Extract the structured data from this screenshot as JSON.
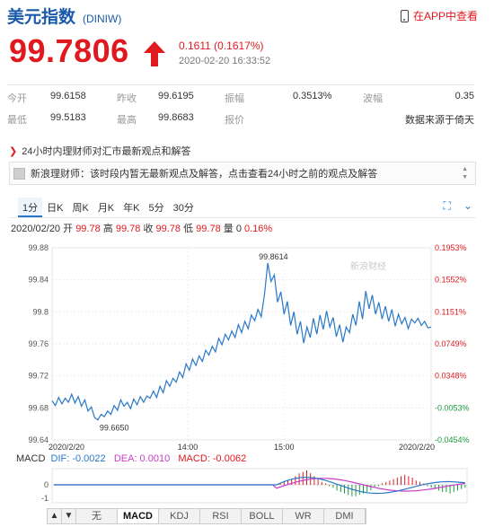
{
  "header": {
    "title": "美元指数",
    "code": "(DINIW)",
    "app_link": "在APP中查看"
  },
  "quote": {
    "price": "99.7806",
    "change": "0.1611 (0.1617%)",
    "timestamp": "2020-02-20 16:33:52",
    "trend": "up",
    "color_up": "#e0191e"
  },
  "stats": [
    {
      "label": "今开",
      "value": "99.6158"
    },
    {
      "label": "昨收",
      "value": "99.6195"
    },
    {
      "label": "振幅",
      "value": "0.3513%"
    },
    {
      "label": "波幅",
      "value": "0.35"
    },
    {
      "label": "最低",
      "value": "99.5183"
    },
    {
      "label": "最高",
      "value": "99.8683"
    },
    {
      "label": "报价",
      "value": "数据来源于倚天"
    }
  ],
  "advisor": {
    "heading": "24小时内理财师对汇市最新观点和解答",
    "message": "新浪理财师：该时段内暂无最新观点及解答，点击查看24小时之前的观点及解答"
  },
  "chart_tabs": [
    "1分",
    "日K",
    "周K",
    "月K",
    "年K",
    "5分",
    "30分"
  ],
  "active_tab": "1分",
  "tools": {
    "fullscreen_icon": "fullscreen-icon",
    "more_icon": "chevron-down-icon"
  },
  "ohlc": {
    "date": "2020/02/20",
    "open_label": "开",
    "open": "99.78",
    "high_label": "高",
    "high": "99.78",
    "close_label": "收",
    "close": "99.78",
    "low_label": "低",
    "low": "99.78",
    "volume_label": "量",
    "volume": "0",
    "pct": "0.16%"
  },
  "chart_data": {
    "type": "line",
    "watermark": "新浪财经",
    "y_ticks_left": [
      "99.88",
      "99.84",
      "99.8",
      "99.76",
      "99.72",
      "99.68",
      "99.64"
    ],
    "y_ticks_right": [
      "0.1953%",
      "0.1552%",
      "0.1151%",
      "0.0749%",
      "0.0348%",
      "-0.0053%",
      "-0.0454%"
    ],
    "x_ticks": [
      "2020/2/20",
      "14:00",
      "15:00",
      "2020/2/20"
    ],
    "ylim": [
      99.64,
      99.88
    ],
    "annotations": {
      "max": "99.8614",
      "min": "99.6650"
    },
    "series": [
      {
        "x": [
          0,
          4,
          8,
          12,
          16,
          20,
          24,
          28,
          32,
          36,
          40,
          44,
          48,
          52,
          56,
          60,
          64,
          68,
          72,
          76,
          80,
          84,
          88,
          92,
          96,
          100,
          104,
          108,
          112,
          116,
          120,
          124,
          128,
          132,
          136,
          140,
          144,
          148,
          152,
          156,
          160,
          164,
          168,
          172,
          176,
          180,
          184,
          188,
          192,
          196,
          200,
          204,
          208,
          212,
          216,
          220,
          224,
          228,
          232,
          236,
          240,
          244,
          248,
          252,
          256,
          260,
          264,
          268,
          272,
          276,
          280,
          284,
          288,
          292,
          296,
          300,
          304,
          308,
          312,
          316,
          320,
          324,
          328,
          332,
          336,
          340,
          344,
          348,
          352,
          356,
          360,
          364,
          368,
          372,
          376,
          380,
          384,
          388,
          392,
          396,
          400,
          404,
          408,
          412,
          416,
          420,
          424,
          428,
          432,
          436,
          440,
          444,
          448,
          452,
          456,
          460,
          464
        ],
        "values": [
          99.689,
          99.683,
          99.693,
          99.685,
          99.692,
          99.687,
          99.697,
          99.686,
          99.694,
          99.682,
          99.69,
          99.676,
          99.681,
          99.668,
          99.665,
          99.672,
          99.669,
          99.676,
          99.672,
          99.683,
          99.677,
          99.69,
          99.682,
          99.687,
          99.679,
          99.691,
          99.684,
          99.694,
          99.687,
          99.695,
          99.692,
          99.701,
          99.693,
          99.707,
          99.699,
          99.714,
          99.707,
          99.717,
          99.712,
          99.725,
          99.718,
          99.735,
          99.727,
          99.741,
          99.733,
          99.745,
          99.738,
          99.752,
          99.746,
          99.757,
          99.75,
          99.767,
          99.759,
          99.772,
          99.765,
          99.776,
          99.768,
          99.784,
          99.774,
          99.788,
          99.779,
          99.796,
          99.789,
          99.803,
          99.794,
          99.822,
          99.861,
          99.838,
          99.846,
          99.812,
          99.825,
          99.797,
          99.813,
          99.783,
          99.8,
          99.772,
          99.788,
          99.761,
          99.781,
          99.768,
          99.792,
          99.772,
          99.796,
          99.778,
          99.801,
          99.781,
          99.793,
          99.769,
          99.784,
          99.762,
          99.781,
          99.774,
          99.797,
          99.783,
          99.813,
          99.791,
          99.826,
          99.804,
          99.821,
          99.797,
          99.812,
          99.791,
          99.807,
          99.788,
          99.803,
          99.782,
          99.797,
          99.785,
          99.793,
          99.779,
          99.791,
          99.786,
          99.792,
          99.783,
          99.788,
          99.78,
          99.781
        ]
      }
    ]
  },
  "macd": {
    "label": "MACD",
    "dif": "DIF: -0.0022",
    "dea": "DEA: 0.0010",
    "macd": "MACD: -0.0062",
    "dif_color": "#2878c8",
    "dea_color": "#c83cc8",
    "macd_color": "#e0191e",
    "y_ticks": [
      "0",
      "-1"
    ]
  },
  "bottom_bar": {
    "nav": [
      "▲",
      "▼"
    ],
    "indicators": [
      "无",
      "MACD",
      "KDJ",
      "RSI",
      "BOLL",
      "WR",
      "DMI"
    ],
    "active": "MACD"
  }
}
